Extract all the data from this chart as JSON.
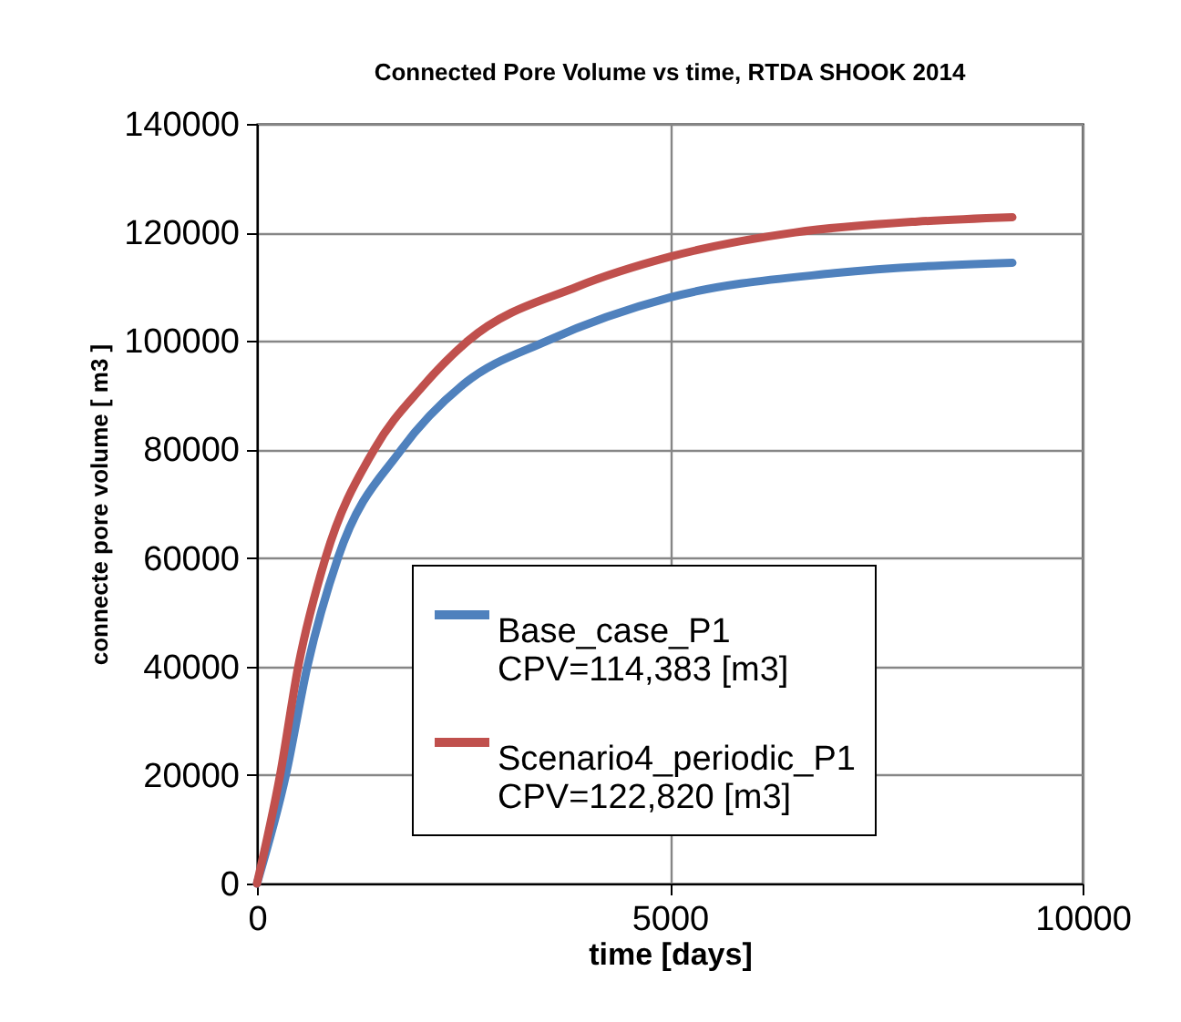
{
  "chart_data": {
    "type": "line",
    "title": "Connected Pore Volume vs time, RTDA SHOOK 2014",
    "xlabel": "time [days]",
    "ylabel": "connecte pore volume [ m3 ]",
    "xlim": [
      0,
      10000
    ],
    "xticks": [
      0,
      5000,
      10000
    ],
    "ylim": [
      0,
      140000
    ],
    "yticks": [
      0,
      20000,
      40000,
      60000,
      80000,
      100000,
      120000,
      140000
    ],
    "grid": true,
    "legend": "bottom right",
    "marker": "none",
    "line_style": "solid",
    "series": [
      {
        "name": "Base_case_P1\nCPV=114,383 [m3]",
        "color": "#4f81bd",
        "x": [
          0,
          350,
          610,
          980,
          1750,
          2500,
          3510,
          5000,
          7000,
          9150
        ],
        "values": [
          0,
          20000,
          40000,
          60000,
          80000,
          92000,
          100000,
          108000,
          112500,
          114400
        ]
      },
      {
        "name": "Scenario4_periodic_P1\nCPV=122,820 [m3]",
        "color": "#c0504d",
        "x": [
          0,
          280,
          500,
          830,
          1420,
          2000,
          2555,
          3880,
          5000,
          6520,
          8000,
          9150
        ],
        "values": [
          0,
          20000,
          40000,
          60000,
          80000,
          91500,
          100000,
          110000,
          115500,
          120000,
          122000,
          122800
        ]
      }
    ]
  }
}
